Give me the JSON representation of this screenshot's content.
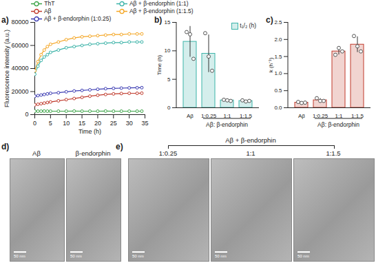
{
  "chart_data": [
    {
      "type": "line",
      "panel_label": "a)",
      "xlabel": "Time (h)",
      "ylabel": "Fluorescence intensity (a.u.)",
      "x": [
        0,
        1,
        2,
        3,
        4,
        5,
        7.5,
        10,
        12.5,
        15,
        17.5,
        20,
        22.5,
        25,
        27.5,
        30,
        32.5,
        34
      ],
      "xlim": [
        0,
        35
      ],
      "xticks": [
        0,
        5,
        10,
        15,
        20,
        25,
        30,
        35
      ],
      "ylim": [
        0,
        80000
      ],
      "yticks": [
        0,
        20000,
        40000,
        60000,
        80000
      ],
      "grid": false,
      "legend": "top",
      "marker": "circle",
      "series": [
        {
          "name": "ThT",
          "color": "#3aa346",
          "values": [
            3000,
            3000,
            3000,
            3100,
            3000,
            3000,
            3000,
            3000,
            3100,
            3000,
            3000,
            3000,
            3100,
            3000,
            3000,
            3000,
            3000,
            3000
          ]
        },
        {
          "name": "Aβ",
          "color": "#c0392b",
          "values": [
            8500,
            9000,
            9500,
            10000,
            10500,
            11000,
            12000,
            13000,
            14000,
            15000,
            16000,
            16800,
            17500,
            18000,
            18300,
            18500,
            18500,
            18600
          ]
        },
        {
          "name": "Aβ + β-endorphin (1:0.25)",
          "color": "#3b3bb3",
          "values": [
            16000,
            16500,
            17000,
            17500,
            18000,
            18500,
            19000,
            19800,
            20500,
            21000,
            21500,
            22000,
            22500,
            22800,
            23000,
            23200,
            23300,
            23400
          ]
        },
        {
          "name": "Aβ + β-endorphin (1:1)",
          "color": "#3bb3a8",
          "values": [
            35000,
            42000,
            47000,
            50000,
            52000,
            54000,
            56000,
            58000,
            59000,
            60000,
            61000,
            61500,
            62000,
            62500,
            62500,
            63000,
            63000,
            63000
          ]
        },
        {
          "name": "Aβ + β-endorphin (1:1.5)",
          "color": "#f5a623",
          "values": [
            38000,
            46000,
            52000,
            56000,
            59000,
            61000,
            63000,
            65000,
            66500,
            67500,
            68000,
            68500,
            69000,
            69500,
            69500,
            70000,
            70000,
            70000
          ]
        }
      ]
    },
    {
      "type": "bar",
      "panel_label": "b)",
      "ylabel": "Time (h)",
      "categories": [
        "Aβ",
        "1:0.25",
        "1:1",
        "1:1.5"
      ],
      "group_label": "Aβ: β-endorphin",
      "ylim": [
        0,
        15
      ],
      "yticks": [
        0,
        5,
        10,
        15
      ],
      "grid": false,
      "legend": "top-right",
      "series": [
        {
          "name": "t₁/₂ (h)",
          "color": "#3bb3a8",
          "values": [
            11.6,
            9.5,
            1.3,
            1.2
          ],
          "errors": [
            2.7,
            3.3,
            0.1,
            0.1
          ],
          "points": [
            [
              13.3,
              12.9,
              8.6
            ],
            [
              13.1,
              9.0,
              6.5
            ],
            [
              1.4,
              1.3,
              1.2
            ],
            [
              1.3,
              1.1,
              1.2
            ]
          ]
        }
      ]
    },
    {
      "type": "bar",
      "panel_label": "c)",
      "ylabel": "k (h⁻¹)",
      "categories": [
        "Aβ",
        "1:0.25",
        "1:1",
        "1:1.5"
      ],
      "group_label": "Aβ: β-endorphin",
      "ylim": [
        0,
        2.5
      ],
      "yticks": [
        {
          "value": 0,
          "label": "0.0"
        },
        {
          "value": 0.5,
          "label": "0.5"
        },
        {
          "value": 1,
          "label": "1.0"
        },
        {
          "value": 1.5,
          "label": "1.5"
        },
        {
          "value": 2,
          "label": "2.0"
        },
        {
          "value": 2.5,
          "label": "2.5"
        }
      ],
      "grid": false,
      "series": [
        {
          "name": "k",
          "color": "#c0392b",
          "values": [
            0.15,
            0.22,
            1.65,
            1.85
          ],
          "errors": [
            0.02,
            0.05,
            0.1,
            0.23
          ],
          "points": [
            [
              0.17,
              0.14,
              0.15
            ],
            [
              0.28,
              0.2,
              0.2
            ],
            [
              1.55,
              1.75,
              1.65
            ],
            [
              2.1,
              1.8,
              1.65
            ]
          ]
        }
      ]
    }
  ],
  "images": {
    "d": {
      "panel_label": "d)",
      "images": [
        {
          "label": "Aβ",
          "scale_bar": "50 nm"
        },
        {
          "label": "β-endorphin",
          "scale_bar": "50 nm"
        }
      ]
    },
    "e": {
      "panel_label": "e)",
      "group_label": "Aβ + β-endorphin",
      "images": [
        {
          "label": "1:0.25",
          "scale_bar": "50 nm"
        },
        {
          "label": "1:1",
          "scale_bar": "50 nm"
        },
        {
          "label": "1:1.5",
          "scale_bar": "50 nm"
        }
      ]
    }
  }
}
